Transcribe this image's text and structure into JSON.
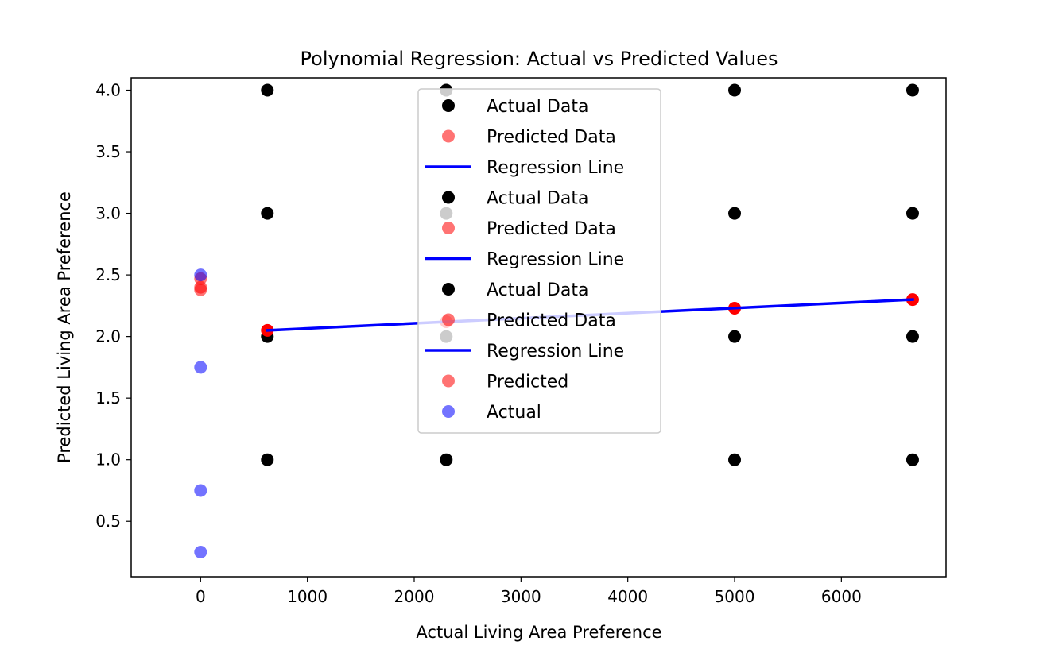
{
  "chart_data": {
    "type": "scatter",
    "title": "Polynomial Regression: Actual vs Predicted Values",
    "xlabel": "Actual Living Area Preference",
    "ylabel": "Predicted Living Area Preference",
    "xlim": [
      -650,
      6980
    ],
    "ylim": [
      0.05,
      4.1
    ],
    "xticks": [
      0,
      1000,
      2000,
      3000,
      4000,
      5000,
      6000
    ],
    "yticks": [
      0.5,
      1.0,
      1.5,
      2.0,
      2.5,
      3.0,
      3.5,
      4.0
    ],
    "ytick_labels": [
      "0.5",
      "1.0",
      "1.5",
      "2.0",
      "2.5",
      "3.0",
      "3.5",
      "4.0"
    ],
    "grid": false,
    "legend_position": "upper-center",
    "colors": {
      "actual": "#000000",
      "predicted": "#ff0000",
      "line": "#0000ff",
      "actual_blue": "#0000ff"
    },
    "series": [
      {
        "name": "Actual Data",
        "kind": "scatter",
        "color": "#000000",
        "points": [
          [
            625,
            1
          ],
          [
            625,
            2
          ],
          [
            625,
            3
          ],
          [
            625,
            4
          ],
          [
            2300,
            1
          ],
          [
            2300,
            2
          ],
          [
            2300,
            3
          ],
          [
            2300,
            4
          ],
          [
            5000,
            1
          ],
          [
            5000,
            2
          ],
          [
            5000,
            3
          ],
          [
            5000,
            4
          ],
          [
            6667,
            1
          ],
          [
            6667,
            2
          ],
          [
            6667,
            3
          ],
          [
            6667,
            4
          ]
        ]
      },
      {
        "name": "Predicted Data",
        "kind": "scatter",
        "color": "#ff0000",
        "points": [
          [
            625,
            2.05
          ],
          [
            2300,
            2.12
          ],
          [
            5000,
            2.23
          ],
          [
            6667,
            2.3
          ]
        ]
      },
      {
        "name": "Regression Line",
        "kind": "line",
        "color": "#0000ff",
        "points": [
          [
            625,
            2.05
          ],
          [
            6667,
            2.3
          ]
        ]
      },
      {
        "name": "Predicted",
        "kind": "scatter",
        "color": "#ff0000",
        "points": [
          [
            0,
            2.38
          ],
          [
            0,
            2.4
          ],
          [
            0,
            2.47
          ]
        ]
      },
      {
        "name": "Actual",
        "kind": "scatter",
        "color": "#0000ff",
        "points": [
          [
            0,
            0.25
          ],
          [
            0,
            0.75
          ],
          [
            0,
            1.75
          ],
          [
            0,
            2.5
          ]
        ]
      }
    ],
    "legend": [
      {
        "label": "Actual Data",
        "marker": "dot",
        "color": "#000000"
      },
      {
        "label": "Predicted Data",
        "marker": "dot-alpha",
        "color": "#ff0000"
      },
      {
        "label": "Regression Line",
        "marker": "line",
        "color": "#0000ff"
      },
      {
        "label": "Actual Data",
        "marker": "dot",
        "color": "#000000"
      },
      {
        "label": "Predicted Data",
        "marker": "dot-alpha",
        "color": "#ff0000"
      },
      {
        "label": "Regression Line",
        "marker": "line",
        "color": "#0000ff"
      },
      {
        "label": "Actual Data",
        "marker": "dot",
        "color": "#000000"
      },
      {
        "label": "Predicted Data",
        "marker": "dot-alpha",
        "color": "#ff0000"
      },
      {
        "label": "Regression Line",
        "marker": "line",
        "color": "#0000ff"
      },
      {
        "label": "Predicted",
        "marker": "dot-alpha",
        "color": "#ff0000"
      },
      {
        "label": "Actual",
        "marker": "dot-alpha",
        "color": "#0000ff"
      }
    ]
  }
}
